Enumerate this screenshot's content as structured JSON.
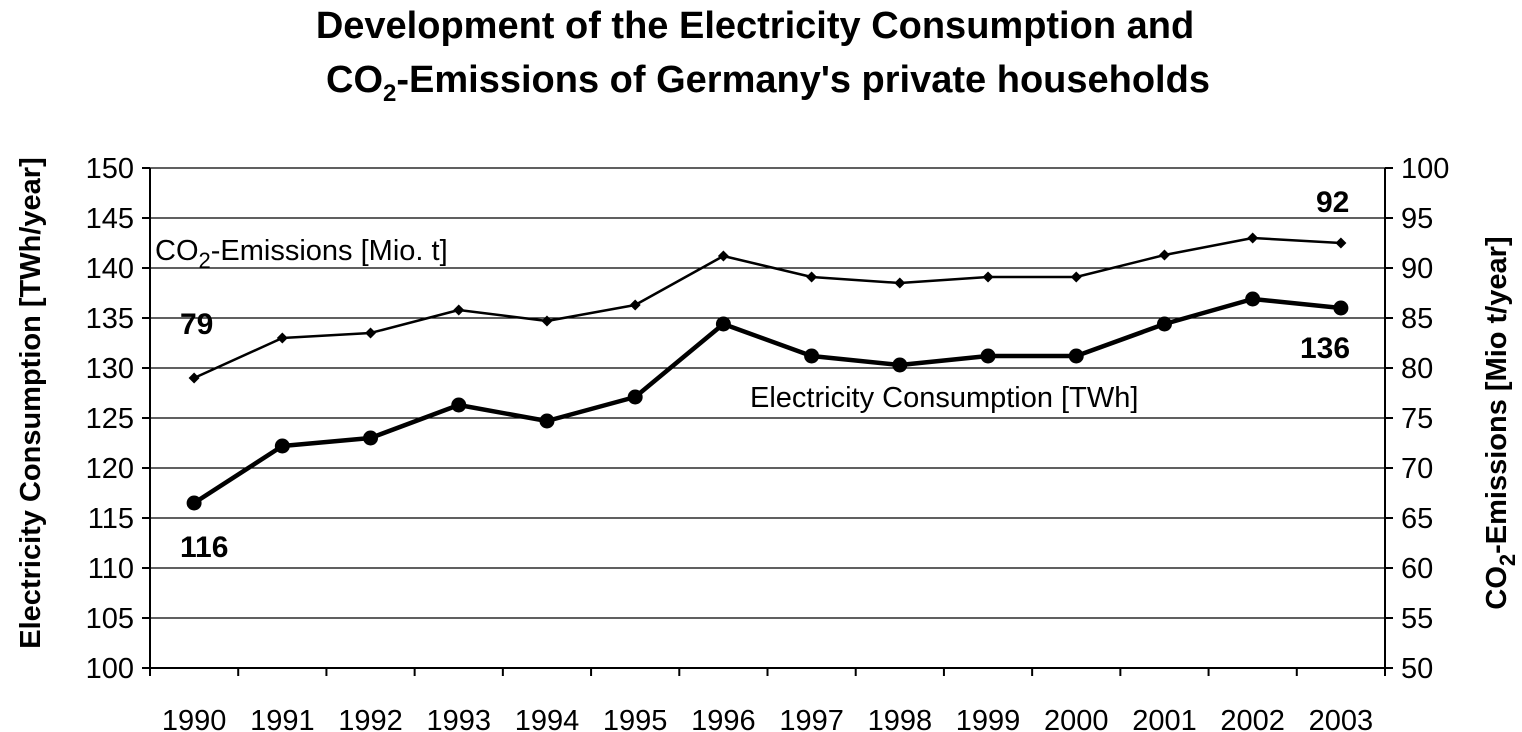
{
  "chart_data": {
    "type": "line",
    "title": {
      "line1": "Development of the Electricity Consumption and",
      "line2_prefix": "CO",
      "line2_sub": "2",
      "line2_suffix": "-Emissions of Germany's private households"
    },
    "categories": [
      "1990",
      "1991",
      "1992",
      "1993",
      "1994",
      "1995",
      "1996",
      "1997",
      "1998",
      "1999",
      "2000",
      "2001",
      "2002",
      "2003"
    ],
    "ylabel_left": "Electricity Consumption [TWh/year]",
    "ylabel_right": {
      "prefix": "CO",
      "sub": "2",
      "suffix": "-Emissions [Mio t/year]"
    },
    "ylim_left": [
      100,
      150
    ],
    "ylim_right": [
      50,
      100
    ],
    "yticks_left": [
      "100",
      "105",
      "110",
      "115",
      "120",
      "125",
      "130",
      "135",
      "140",
      "145",
      "150"
    ],
    "yticks_right": [
      "50",
      "55",
      "60",
      "65",
      "70",
      "75",
      "80",
      "85",
      "90",
      "95",
      "100"
    ],
    "grid": true,
    "series": [
      {
        "name": {
          "prefix": "CO",
          "sub": "2",
          "suffix": "-Emissions [Mio. t]"
        },
        "axis": "right",
        "marker": "diamond",
        "values": [
          79,
          83,
          83.5,
          85.8,
          84.7,
          86.3,
          91.2,
          89.1,
          88.5,
          89.1,
          89.1,
          91.3,
          93,
          92.5
        ],
        "first_label": "79",
        "last_label": "92"
      },
      {
        "name": "Electricity Consumption [TWh]",
        "axis": "left",
        "marker": "circle",
        "values": [
          116.5,
          122.2,
          123,
          126.3,
          124.7,
          127.1,
          134.4,
          131.2,
          130.3,
          131.2,
          131.2,
          134.4,
          136.9,
          136
        ],
        "first_label": "116",
        "last_label": "136"
      }
    ]
  }
}
